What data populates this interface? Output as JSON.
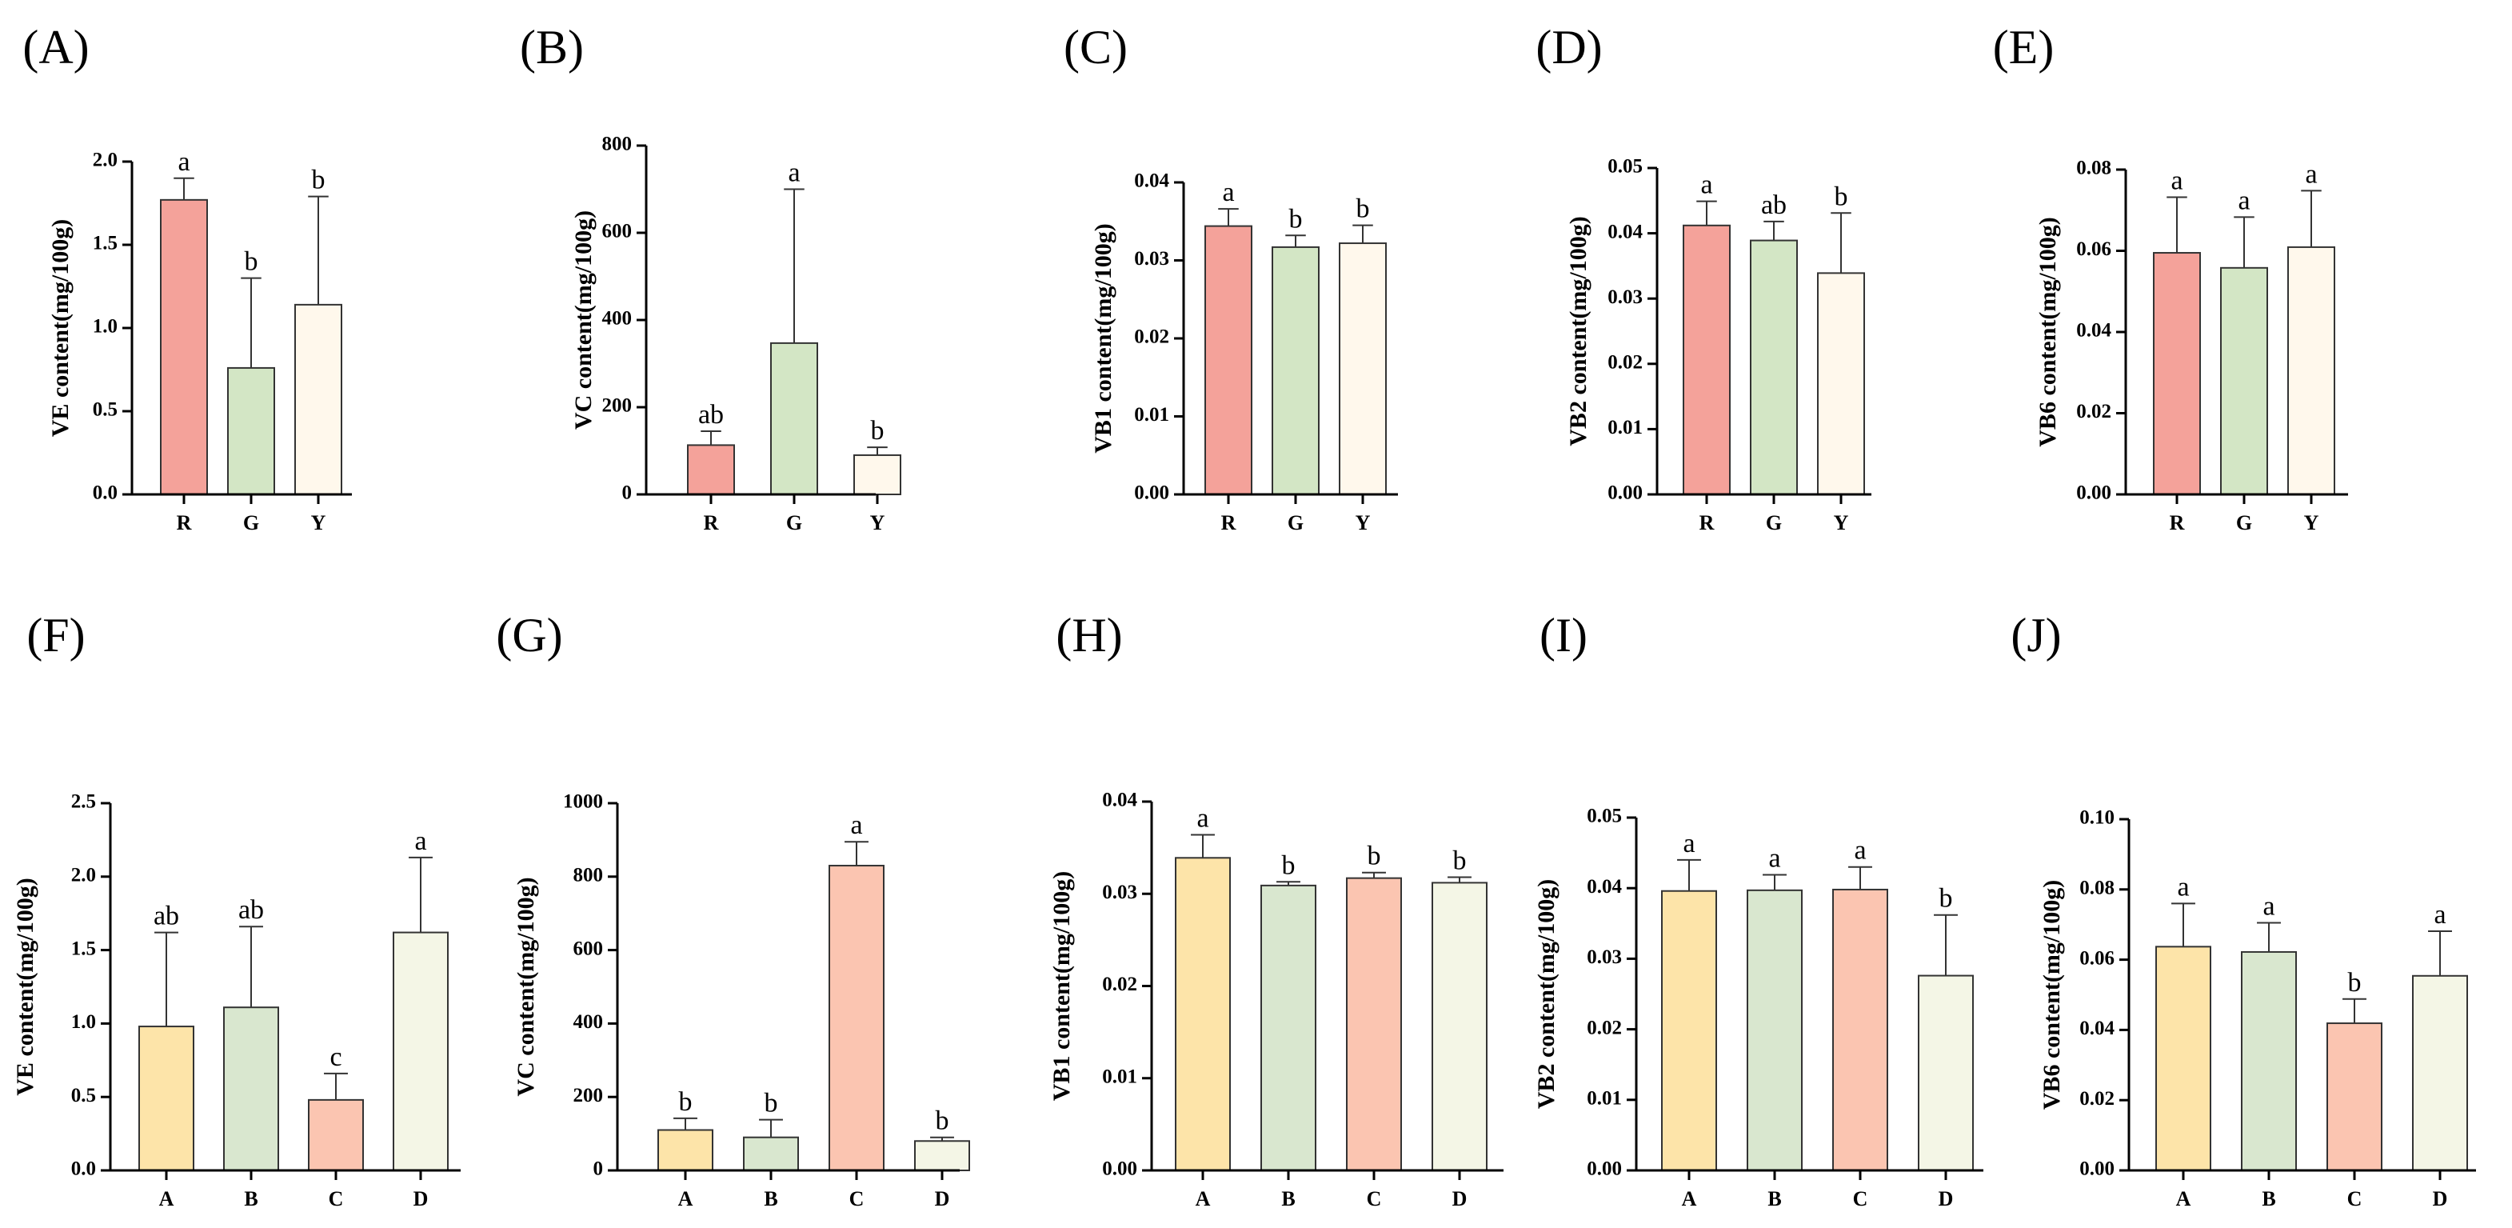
{
  "chart_data": [
    {
      "type": "bar",
      "panel": "(A)",
      "ylabel": "VE content(mg/100g)",
      "categories": [
        "R",
        "G",
        "Y"
      ],
      "values": [
        1.77,
        0.76,
        1.14
      ],
      "errors": [
        0.13,
        0.54,
        0.65
      ],
      "letters": [
        "a",
        "b",
        "b"
      ],
      "colors": [
        "#f4a29a",
        "#d3e6c5",
        "#fff8ec"
      ],
      "ylim": [
        0,
        2.0
      ],
      "yticks": [
        "0.0",
        "0.5",
        "1.0",
        "1.5",
        "2.0"
      ]
    },
    {
      "type": "bar",
      "panel": "(B)",
      "ylabel": "VC content(mg/100g)",
      "categories": [
        "R",
        "G",
        "Y"
      ],
      "values": [
        113,
        347,
        90
      ],
      "errors": [
        32,
        353,
        18
      ],
      "letters": [
        "ab",
        "a",
        "b"
      ],
      "colors": [
        "#f4a29a",
        "#d3e6c5",
        "#fff8ec"
      ],
      "ylim": [
        0,
        800
      ],
      "yticks": [
        "0",
        "200",
        "400",
        "600",
        "800"
      ]
    },
    {
      "type": "bar",
      "panel": "(C)",
      "ylabel": "VB1 content(mg/100g)",
      "categories": [
        "R",
        "G",
        "Y"
      ],
      "values": [
        0.0344,
        0.0317,
        0.0322
      ],
      "errors": [
        0.0022,
        0.0015,
        0.0023
      ],
      "letters": [
        "a",
        "b",
        "b"
      ],
      "colors": [
        "#f4a29a",
        "#d3e6c5",
        "#fff8ec"
      ],
      "ylim": [
        0,
        0.04
      ],
      "yticks": [
        "0.00",
        "0.01",
        "0.02",
        "0.03",
        "0.04"
      ]
    },
    {
      "type": "bar",
      "panel": "(D)",
      "ylabel": "VB2 content(mg/100g)",
      "categories": [
        "R",
        "G",
        "Y"
      ],
      "values": [
        0.0412,
        0.0389,
        0.0339
      ],
      "errors": [
        0.0037,
        0.0029,
        0.0092
      ],
      "letters": [
        "a",
        "ab",
        "b"
      ],
      "colors": [
        "#f4a29a",
        "#d3e6c5",
        "#fff8ec"
      ],
      "ylim": [
        0,
        0.05
      ],
      "yticks": [
        "0.00",
        "0.01",
        "0.02",
        "0.03",
        "0.04",
        "0.05"
      ]
    },
    {
      "type": "bar",
      "panel": "(E)",
      "ylabel": "VB6 content(mg/100g)",
      "categories": [
        "R",
        "G",
        "Y"
      ],
      "values": [
        0.0595,
        0.0558,
        0.0609
      ],
      "errors": [
        0.0137,
        0.0125,
        0.0139
      ],
      "letters": [
        "a",
        "a",
        "a"
      ],
      "colors": [
        "#f4a29a",
        "#d3e6c5",
        "#fff8ec"
      ],
      "ylim": [
        0,
        0.08
      ],
      "yticks": [
        "0.00",
        "0.02",
        "0.04",
        "0.06",
        "0.08"
      ]
    },
    {
      "type": "bar",
      "panel": "(F)",
      "ylabel": "VE content(mg/100g)",
      "categories": [
        "A",
        "B",
        "C",
        "D"
      ],
      "values": [
        0.98,
        1.11,
        0.48,
        1.62
      ],
      "errors": [
        0.64,
        0.55,
        0.18,
        0.51
      ],
      "letters": [
        "ab",
        "ab",
        "c",
        "a"
      ],
      "colors": [
        "#fde4a9",
        "#d9e7cf",
        "#fbc5b1",
        "#f4f6e6"
      ],
      "ylim": [
        0,
        2.5
      ],
      "yticks": [
        "0.0",
        "0.5",
        "1.0",
        "1.5",
        "2.0",
        "2.5"
      ]
    },
    {
      "type": "bar",
      "panel": "(G)",
      "ylabel": "VC content(mg/100g)",
      "categories": [
        "A",
        "B",
        "C",
        "D"
      ],
      "values": [
        110,
        90,
        830,
        80
      ],
      "errors": [
        32,
        48,
        65,
        10
      ],
      "letters": [
        "b",
        "b",
        "a",
        "b"
      ],
      "colors": [
        "#fde4a9",
        "#d9e7cf",
        "#fbc5b1",
        "#f4f6e6"
      ],
      "ylim": [
        0,
        1000
      ],
      "yticks": [
        "0",
        "200",
        "400",
        "600",
        "800",
        "1000"
      ]
    },
    {
      "type": "bar",
      "panel": "(H)",
      "ylabel": "VB1 content(mg/100g)",
      "categories": [
        "A",
        "B",
        "C",
        "D"
      ],
      "values": [
        0.0339,
        0.0309,
        0.0317,
        0.0312
      ],
      "errors": [
        0.0025,
        0.0004,
        0.0006,
        0.0006
      ],
      "letters": [
        "a",
        "b",
        "b",
        "b"
      ],
      "colors": [
        "#fde4a9",
        "#d9e7cf",
        "#fbc5b1",
        "#f4f6e6"
      ],
      "ylim": [
        0,
        0.04
      ],
      "yticks": [
        "0.00",
        "0.01",
        "0.02",
        "0.03",
        "0.04"
      ]
    },
    {
      "type": "bar",
      "panel": "(I)",
      "ylabel": "VB2 content(mg/100g)",
      "categories": [
        "A",
        "B",
        "C",
        "D"
      ],
      "values": [
        0.0396,
        0.0397,
        0.0398,
        0.0276
      ],
      "errors": [
        0.0044,
        0.0022,
        0.0032,
        0.0086
      ],
      "letters": [
        "a",
        "a",
        "a",
        "b"
      ],
      "colors": [
        "#fde4a9",
        "#d9e7cf",
        "#fbc5b1",
        "#f4f6e6"
      ],
      "ylim": [
        0,
        0.05
      ],
      "yticks": [
        "0.00",
        "0.01",
        "0.02",
        "0.03",
        "0.04",
        "0.05"
      ]
    },
    {
      "type": "bar",
      "panel": "(J)",
      "ylabel": "VB6 content(mg/100g)",
      "categories": [
        "A",
        "B",
        "C",
        "D"
      ],
      "values": [
        0.0637,
        0.0622,
        0.0419,
        0.0554
      ],
      "errors": [
        0.0123,
        0.0083,
        0.0069,
        0.0127
      ],
      "letters": [
        "a",
        "a",
        "b",
        "a"
      ],
      "colors": [
        "#fde4a9",
        "#d9e7cf",
        "#fbc5b1",
        "#f4f6e6"
      ],
      "ylim": [
        0,
        0.1
      ],
      "yticks": [
        "0.00",
        "0.02",
        "0.04",
        "0.06",
        "0.08",
        "0.10"
      ]
    }
  ]
}
